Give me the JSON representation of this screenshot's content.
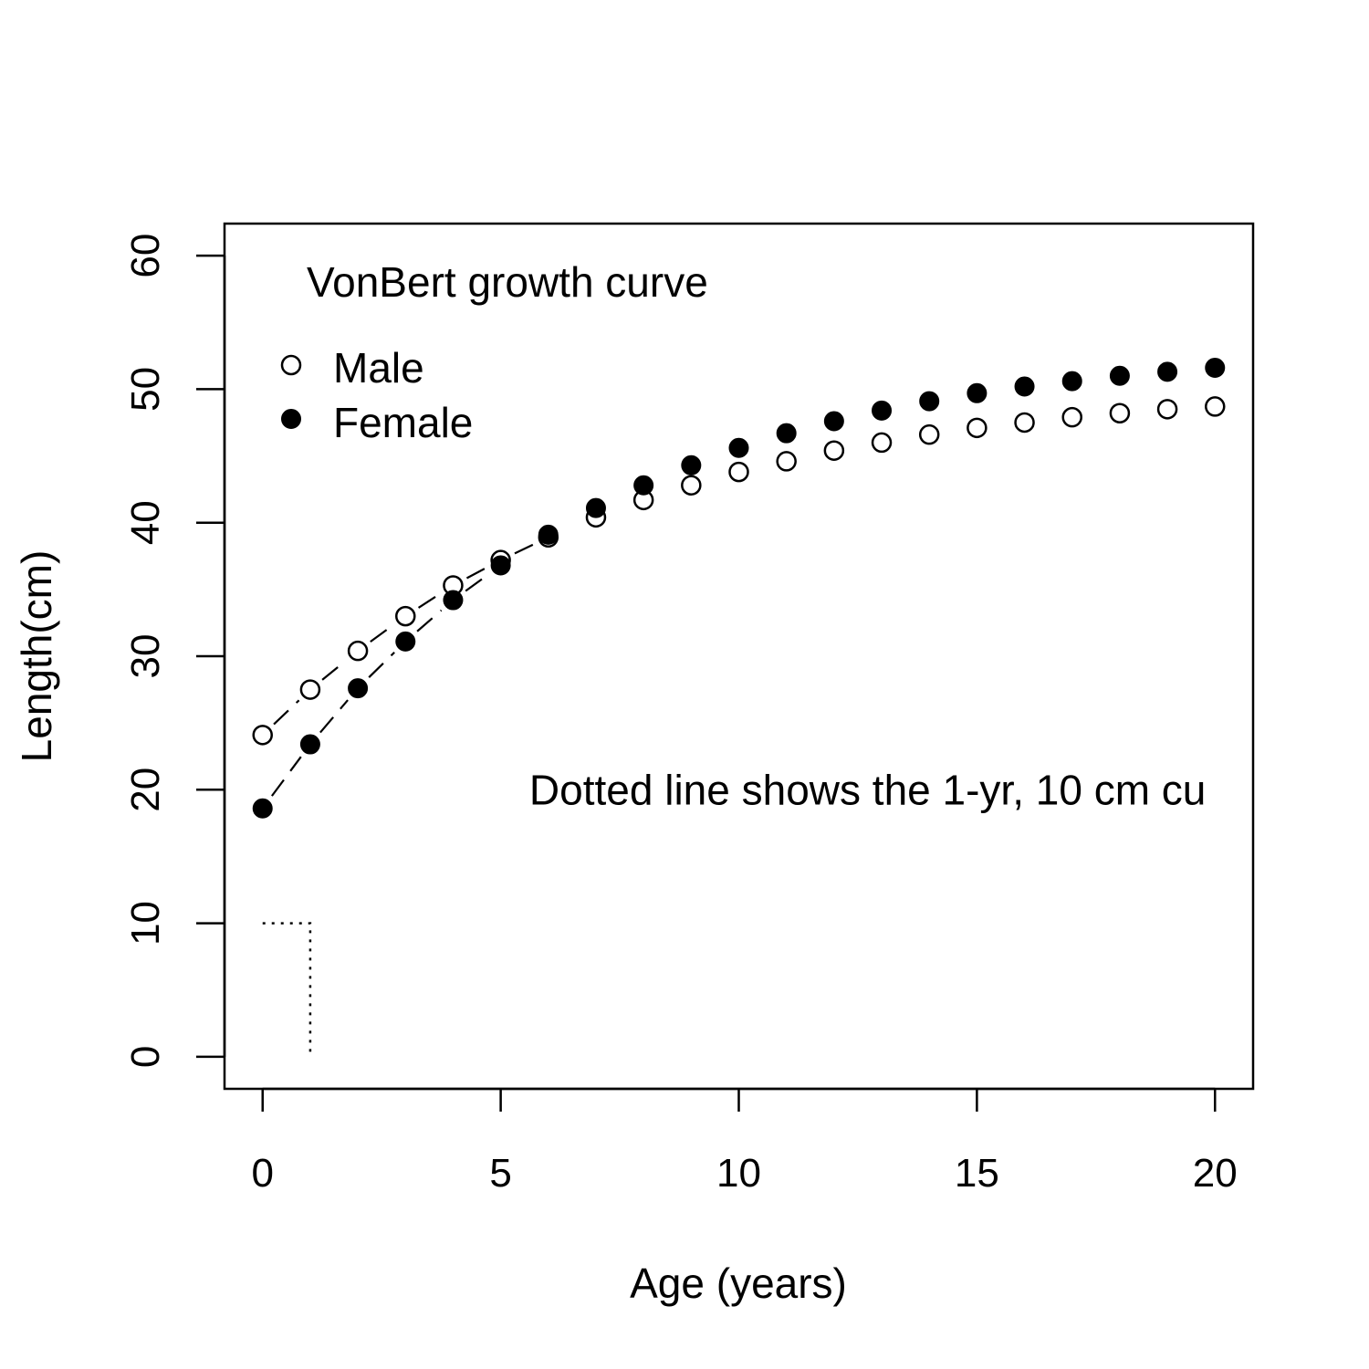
{
  "chart_data": {
    "type": "scatter",
    "title": "",
    "xlabel": "Age (years)",
    "ylabel": "Length(cm)",
    "xlim": [
      -0.8,
      20.8
    ],
    "ylim": [
      -2.4,
      62.4
    ],
    "xticks": [
      0,
      5,
      10,
      15,
      20
    ],
    "yticks": [
      0,
      10,
      20,
      30,
      40,
      50,
      60
    ],
    "grid": false,
    "legend": {
      "title": "VonBert growth curve",
      "placement": "top-left",
      "entries": [
        "Male",
        "Female"
      ]
    },
    "annotations": [
      {
        "text": "Dotted line shows the 1-yr, 10 cm cu",
        "x": 5.6,
        "y": 20
      }
    ],
    "x": [
      0,
      1,
      2,
      3,
      4,
      5,
      6,
      7,
      8,
      9,
      10,
      11,
      12,
      13,
      14,
      15,
      16,
      17,
      18,
      19,
      20
    ],
    "series": [
      {
        "name": "Male",
        "marker": "open-circle",
        "values": [
          24.1,
          27.5,
          30.4,
          33.0,
          35.3,
          37.2,
          38.9,
          40.4,
          41.7,
          42.8,
          43.8,
          44.6,
          45.4,
          46.0,
          46.6,
          47.1,
          47.5,
          47.9,
          48.2,
          48.5,
          48.7
        ]
      },
      {
        "name": "Female",
        "marker": "filled-circle",
        "values": [
          18.6,
          23.4,
          27.6,
          31.1,
          34.2,
          36.8,
          39.1,
          41.1,
          42.8,
          44.3,
          45.6,
          46.7,
          47.6,
          48.4,
          49.1,
          49.7,
          50.2,
          50.6,
          51.0,
          51.3,
          51.6
        ]
      }
    ],
    "reference_line": {
      "style": "dotted",
      "points": [
        [
          0,
          10
        ],
        [
          1,
          10
        ],
        [
          1,
          0
        ]
      ]
    },
    "connector_segments": {
      "Male": {
        "style": "dashed",
        "x_range": [
          0,
          6
        ]
      },
      "Female": {
        "style": "dashed",
        "x_range": [
          0,
          5
        ]
      }
    }
  }
}
